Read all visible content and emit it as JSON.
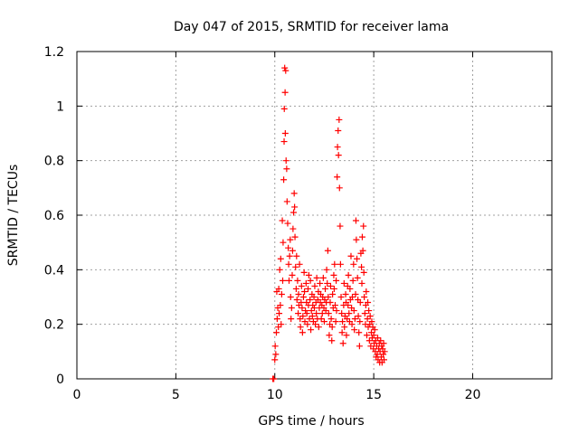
{
  "chart_data": {
    "type": "scatter",
    "title": "Day 047 of 2015, SRMTID for receiver lama",
    "xlabel": "GPS time / hours",
    "ylabel": "SRMTID / TECUs",
    "xlim": [
      0,
      24
    ],
    "ylim": [
      0,
      1.2
    ],
    "xticks": [
      0,
      5,
      10,
      15,
      20
    ],
    "yticks": [
      0,
      0.2,
      0.4,
      0.6,
      0.8,
      1,
      1.2
    ],
    "xtick_labels": [
      "0",
      "5",
      "10",
      "15",
      "20"
    ],
    "ytick_labels": [
      "0",
      "0.2",
      "0.4",
      "0.6",
      "0.8",
      "1",
      "1.2"
    ],
    "grid": true,
    "marker": "+",
    "series": [
      {
        "name": "SRMTID",
        "color": "#ff0000",
        "points": [
          [
            9.9,
            0.0
          ],
          [
            9.95,
            0.0
          ],
          [
            10.0,
            0.07
          ],
          [
            10.02,
            0.12
          ],
          [
            10.05,
            0.09
          ],
          [
            10.08,
            0.17
          ],
          [
            10.1,
            0.32
          ],
          [
            10.12,
            0.22
          ],
          [
            10.15,
            0.26
          ],
          [
            10.18,
            0.19
          ],
          [
            10.2,
            0.33
          ],
          [
            10.22,
            0.24
          ],
          [
            10.25,
            0.4
          ],
          [
            10.28,
            0.27
          ],
          [
            10.3,
            0.44
          ],
          [
            10.32,
            0.2
          ],
          [
            10.35,
            0.31
          ],
          [
            10.38,
            0.58
          ],
          [
            10.4,
            0.36
          ],
          [
            10.42,
            0.5
          ],
          [
            10.45,
            0.73
          ],
          [
            10.47,
            0.87
          ],
          [
            10.48,
            0.99
          ],
          [
            10.5,
            1.14
          ],
          [
            10.52,
            1.05
          ],
          [
            10.53,
            0.9
          ],
          [
            10.55,
            1.13
          ],
          [
            10.57,
            0.8
          ],
          [
            10.6,
            0.77
          ],
          [
            10.62,
            0.65
          ],
          [
            10.65,
            0.57
          ],
          [
            10.68,
            0.48
          ],
          [
            10.7,
            0.42
          ],
          [
            10.72,
            0.36
          ],
          [
            10.75,
            0.45
          ],
          [
            10.78,
            0.51
          ],
          [
            10.8,
            0.3
          ],
          [
            10.82,
            0.22
          ],
          [
            10.85,
            0.26
          ],
          [
            10.88,
            0.38
          ],
          [
            10.9,
            0.47
          ],
          [
            10.92,
            0.55
          ],
          [
            10.95,
            0.61
          ],
          [
            10.98,
            0.68
          ],
          [
            11.0,
            0.63
          ],
          [
            11.02,
            0.52
          ],
          [
            11.05,
            0.41
          ],
          [
            11.08,
            0.33
          ],
          [
            11.1,
            0.45
          ],
          [
            11.12,
            0.29
          ],
          [
            11.15,
            0.36
          ],
          [
            11.18,
            0.24
          ],
          [
            11.2,
            0.31
          ],
          [
            11.22,
            0.27
          ],
          [
            11.25,
            0.42
          ],
          [
            11.28,
            0.22
          ],
          [
            11.3,
            0.19
          ],
          [
            11.33,
            0.28
          ],
          [
            11.35,
            0.34
          ],
          [
            11.38,
            0.26
          ],
          [
            11.4,
            0.17
          ],
          [
            11.42,
            0.23
          ],
          [
            11.45,
            0.3
          ],
          [
            11.48,
            0.39
          ],
          [
            11.5,
            0.32
          ],
          [
            11.52,
            0.21
          ],
          [
            11.55,
            0.25
          ],
          [
            11.58,
            0.35
          ],
          [
            11.6,
            0.28
          ],
          [
            11.62,
            0.24
          ],
          [
            11.65,
            0.2
          ],
          [
            11.68,
            0.33
          ],
          [
            11.7,
            0.27
          ],
          [
            11.72,
            0.38
          ],
          [
            11.75,
            0.22
          ],
          [
            11.78,
            0.29
          ],
          [
            11.8,
            0.36
          ],
          [
            11.82,
            0.18
          ],
          [
            11.85,
            0.25
          ],
          [
            11.88,
            0.31
          ],
          [
            11.9,
            0.23
          ],
          [
            11.92,
            0.27
          ],
          [
            11.95,
            0.21
          ],
          [
            11.98,
            0.3
          ],
          [
            12.0,
            0.26
          ],
          [
            12.02,
            0.34
          ],
          [
            12.05,
            0.2
          ],
          [
            12.08,
            0.28
          ],
          [
            12.1,
            0.24
          ],
          [
            12.12,
            0.37
          ],
          [
            12.15,
            0.22
          ],
          [
            12.18,
            0.29
          ],
          [
            12.2,
            0.32
          ],
          [
            12.22,
            0.19
          ],
          [
            12.25,
            0.26
          ],
          [
            12.28,
            0.35
          ],
          [
            12.3,
            0.28
          ],
          [
            12.32,
            0.31
          ],
          [
            12.35,
            0.22
          ],
          [
            12.38,
            0.27
          ],
          [
            12.4,
            0.24
          ],
          [
            12.42,
            0.3
          ],
          [
            12.45,
            0.37
          ],
          [
            12.48,
            0.26
          ],
          [
            12.5,
            0.21
          ],
          [
            12.52,
            0.29
          ],
          [
            12.55,
            0.33
          ],
          [
            12.58,
            0.25
          ],
          [
            12.6,
            0.28
          ],
          [
            12.62,
            0.4
          ],
          [
            12.65,
            0.35
          ],
          [
            12.68,
            0.47
          ],
          [
            12.7,
            0.3
          ],
          [
            12.72,
            0.24
          ],
          [
            12.75,
            0.16
          ],
          [
            12.78,
            0.2
          ],
          [
            12.8,
            0.28
          ],
          [
            12.82,
            0.34
          ],
          [
            12.85,
            0.22
          ],
          [
            12.88,
            0.14
          ],
          [
            12.9,
            0.19
          ],
          [
            12.92,
            0.31
          ],
          [
            12.95,
            0.26
          ],
          [
            12.98,
            0.38
          ],
          [
            13.0,
            0.33
          ],
          [
            13.02,
            0.42
          ],
          [
            13.05,
            0.27
          ],
          [
            13.08,
            0.21
          ],
          [
            13.1,
            0.36
          ],
          [
            13.12,
            0.25
          ],
          [
            13.15,
            0.74
          ],
          [
            13.17,
            0.85
          ],
          [
            13.2,
            0.91
          ],
          [
            13.22,
            0.82
          ],
          [
            13.25,
            0.95
          ],
          [
            13.27,
            0.7
          ],
          [
            13.3,
            0.56
          ],
          [
            13.32,
            0.42
          ],
          [
            13.35,
            0.3
          ],
          [
            13.38,
            0.24
          ],
          [
            13.4,
            0.17
          ],
          [
            13.42,
            0.21
          ],
          [
            13.45,
            0.13
          ],
          [
            13.48,
            0.27
          ],
          [
            13.5,
            0.35
          ],
          [
            13.52,
            0.19
          ],
          [
            13.55,
            0.23
          ],
          [
            13.58,
            0.31
          ],
          [
            13.6,
            0.28
          ],
          [
            13.62,
            0.16
          ],
          [
            13.65,
            0.22
          ],
          [
            13.68,
            0.34
          ],
          [
            13.7,
            0.27
          ],
          [
            13.72,
            0.38
          ],
          [
            13.75,
            0.24
          ],
          [
            13.78,
            0.21
          ],
          [
            13.8,
            0.33
          ],
          [
            13.82,
            0.29
          ],
          [
            13.85,
            0.45
          ],
          [
            13.88,
            0.26
          ],
          [
            13.9,
            0.2
          ],
          [
            13.92,
            0.3
          ],
          [
            13.95,
            0.36
          ],
          [
            13.98,
            0.42
          ],
          [
            14.0,
            0.25
          ],
          [
            14.02,
            0.18
          ],
          [
            14.05,
            0.22
          ],
          [
            14.08,
            0.31
          ],
          [
            14.1,
            0.58
          ],
          [
            14.12,
            0.51
          ],
          [
            14.15,
            0.44
          ],
          [
            14.18,
            0.37
          ],
          [
            14.2,
            0.29
          ],
          [
            14.22,
            0.23
          ],
          [
            14.25,
            0.17
          ],
          [
            14.28,
            0.12
          ],
          [
            14.3,
            0.21
          ],
          [
            14.32,
            0.28
          ],
          [
            14.35,
            0.46
          ],
          [
            14.38,
            0.41
          ],
          [
            14.4,
            0.35
          ],
          [
            14.42,
            0.52
          ],
          [
            14.45,
            0.47
          ],
          [
            14.48,
            0.56
          ],
          [
            14.5,
            0.39
          ],
          [
            14.52,
            0.3
          ],
          [
            14.55,
            0.24
          ],
          [
            14.58,
            0.2
          ],
          [
            14.6,
            0.27
          ],
          [
            14.62,
            0.32
          ],
          [
            14.65,
            0.16
          ],
          [
            14.68,
            0.22
          ],
          [
            14.7,
            0.28
          ],
          [
            14.72,
            0.19
          ],
          [
            14.75,
            0.25
          ],
          [
            14.78,
            0.14
          ],
          [
            14.8,
            0.2
          ],
          [
            14.82,
            0.23
          ],
          [
            14.85,
            0.12
          ],
          [
            14.88,
            0.17
          ],
          [
            14.9,
            0.21
          ],
          [
            14.92,
            0.15
          ],
          [
            14.95,
            0.19
          ],
          [
            14.98,
            0.11
          ],
          [
            15.0,
            0.16
          ],
          [
            15.02,
            0.13
          ],
          [
            15.05,
            0.18
          ],
          [
            15.08,
            0.1
          ],
          [
            15.1,
            0.14
          ],
          [
            15.12,
            0.08
          ],
          [
            15.15,
            0.12
          ],
          [
            15.18,
            0.09
          ],
          [
            15.2,
            0.15
          ],
          [
            15.22,
            0.07
          ],
          [
            15.25,
            0.11
          ],
          [
            15.28,
            0.13
          ],
          [
            15.3,
            0.06
          ],
          [
            15.32,
            0.1
          ],
          [
            15.35,
            0.14
          ],
          [
            15.38,
            0.08
          ],
          [
            15.4,
            0.12
          ],
          [
            15.42,
            0.06
          ],
          [
            15.45,
            0.11
          ],
          [
            15.48,
            0.09
          ],
          [
            15.5,
            0.13
          ],
          [
            15.52,
            0.07
          ],
          [
            15.55,
            0.1
          ]
        ]
      }
    ]
  }
}
